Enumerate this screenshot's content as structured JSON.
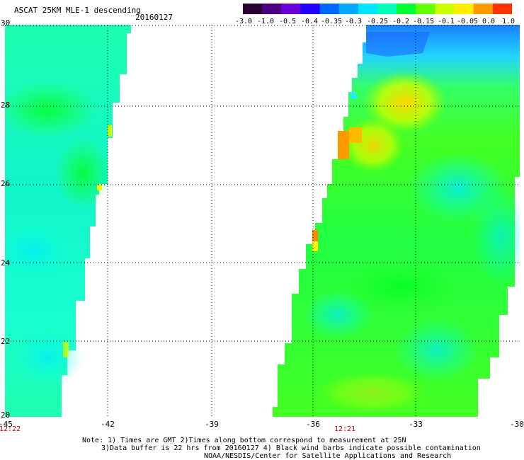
{
  "header": {
    "title": "ASCAT 25KM MLE-1 descending",
    "date": "20160127"
  },
  "colorbar": {
    "labels": [
      "-3.0",
      "-1.0",
      "-0.5",
      "-0.4",
      "-0.35",
      "-0.3",
      "-0.25",
      "-0.2",
      "-0.15",
      "-0.1",
      "-0.05",
      "0.0",
      "1.0"
    ],
    "colors": [
      "#2a0033",
      "#4b0082",
      "#6a00d9",
      "#2200ff",
      "#0066ff",
      "#00a8ff",
      "#00e6ff",
      "#00ffb8",
      "#00ff33",
      "#66ff00",
      "#ccff00",
      "#ffee00",
      "#ff9900",
      "#ff3300"
    ]
  },
  "axes": {
    "x_labels": [
      "-45",
      "-42",
      "-39",
      "-36",
      "-33",
      "-30"
    ],
    "y_labels": [
      "30",
      "28",
      "26",
      "24",
      "22",
      "20"
    ]
  },
  "times": [
    "12:22",
    "12:21"
  ],
  "notes": [
    "Note: 1) Times are GMT 2)Times along bottom correspond to measurement at 25N",
    "3)Data buffer is 22 hrs from 20160127 4) Black wind barbs indicate possible contamination",
    "NOAA/NESDIS/Center for Satellite Applications and Research"
  ]
}
